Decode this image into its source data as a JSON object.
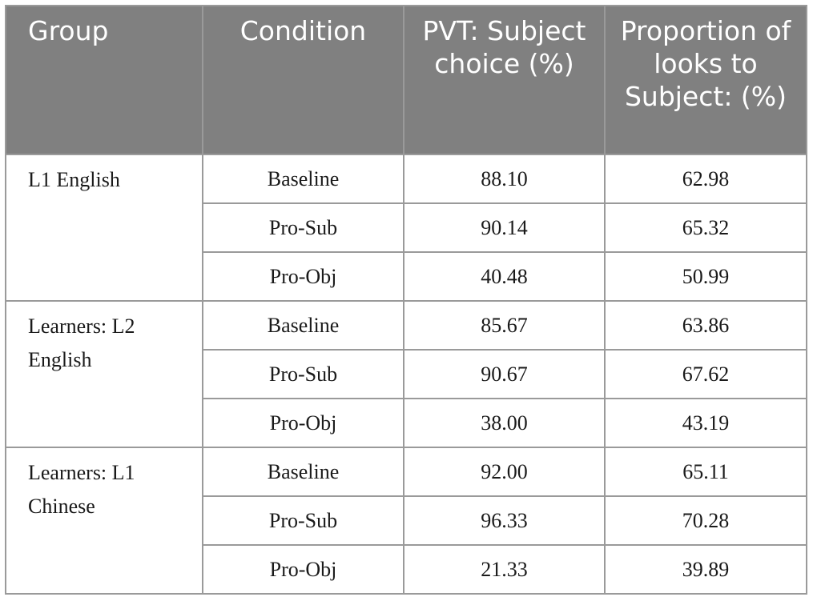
{
  "table": {
    "headers": {
      "group": "Group",
      "condition": "Condition",
      "pvt": "PVT: Subject choice (%)",
      "looks": "Proportion of looks to Subject: (%)"
    },
    "groups": [
      {
        "name": "L1 English",
        "rows": [
          {
            "condition": "Baseline",
            "pvt": "88.10",
            "looks": "62.98"
          },
          {
            "condition": "Pro-Sub",
            "pvt": "90.14",
            "looks": "65.32"
          },
          {
            "condition": "Pro-Obj",
            "pvt": "40.48",
            "looks": "50.99"
          }
        ]
      },
      {
        "name": "Learners: L2 English",
        "rows": [
          {
            "condition": "Baseline",
            "pvt": "85.67",
            "looks": "63.86"
          },
          {
            "condition": "Pro-Sub",
            "pvt": "90.67",
            "looks": "67.62"
          },
          {
            "condition": "Pro-Obj",
            "pvt": "38.00",
            "looks": "43.19"
          }
        ]
      },
      {
        "name": "Learners: L1 Chinese",
        "rows": [
          {
            "condition": "Baseline",
            "pvt": "92.00",
            "looks": "65.11"
          },
          {
            "condition": "Pro-Sub",
            "pvt": "96.33",
            "looks": "70.28"
          },
          {
            "condition": "Pro-Obj",
            "pvt": "21.33",
            "looks": "39.89"
          }
        ]
      }
    ]
  }
}
